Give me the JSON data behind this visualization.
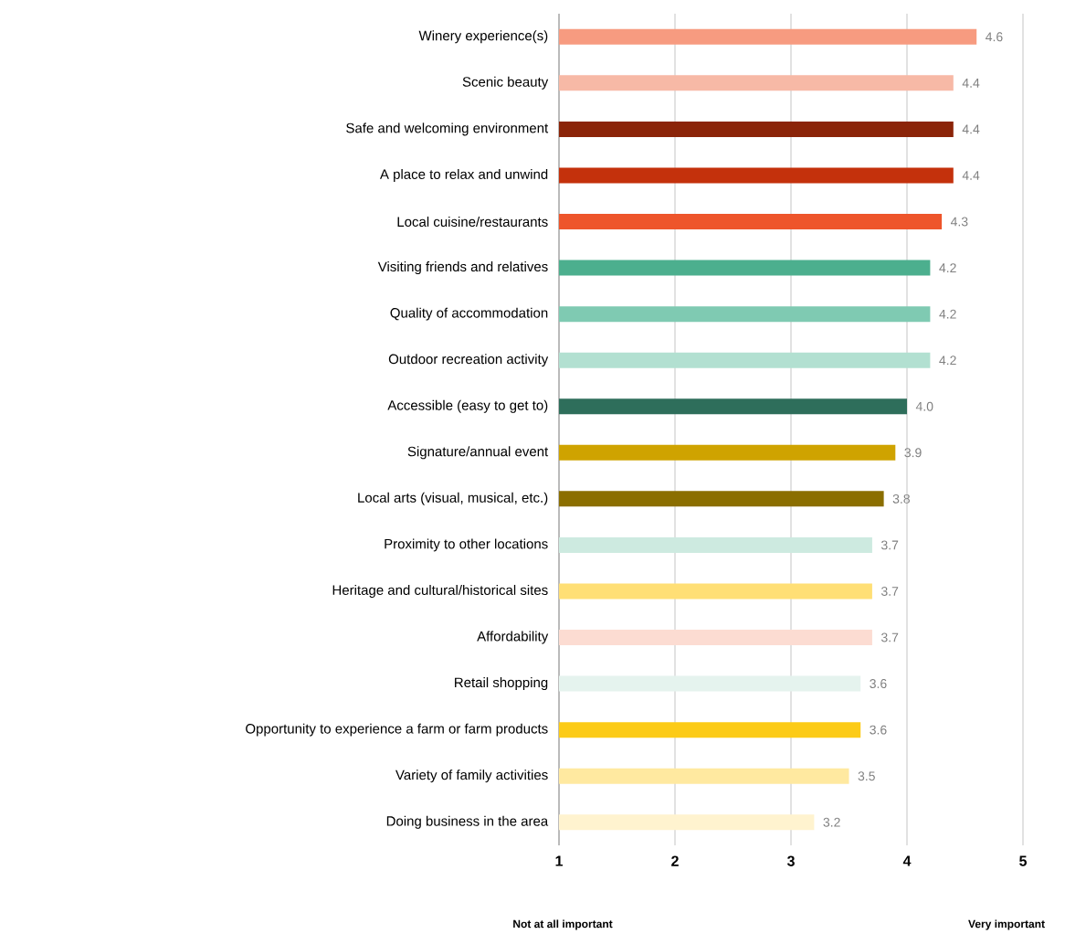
{
  "chart_data": {
    "type": "bar",
    "orientation": "horizontal",
    "categories": [
      "Winery experience(s)",
      "Scenic beauty",
      "Safe and welcoming environment",
      "A place to relax and unwind",
      "Local cuisine/restaurants",
      "Visiting friends and relatives",
      "Quality of accommodation",
      "Outdoor recreation activity",
      "Accessible (easy to get to)",
      "Signature/annual event",
      "Local arts (visual, musical, etc.)",
      "Proximity to other locations",
      "Heritage and cultural/historical sites",
      "Affordability",
      "Retail shopping",
      "Opportunity to experience a farm or farm products",
      "Variety of family activities",
      "Doing business in the area"
    ],
    "values": [
      4.6,
      4.4,
      4.4,
      4.4,
      4.3,
      4.2,
      4.2,
      4.2,
      4.0,
      3.9,
      3.8,
      3.7,
      3.7,
      3.7,
      3.6,
      3.6,
      3.5,
      3.2
    ],
    "colors": [
      "#f79b80",
      "#f7b9a6",
      "#8b2408",
      "#c4310c",
      "#ee552b",
      "#4caf8e",
      "#7fcab2",
      "#b2e0d1",
      "#2e6e5b",
      "#cfa300",
      "#8b6e00",
      "#cdeae0",
      "#ffdf75",
      "#fcdcd2",
      "#e5f3ee",
      "#fccb17",
      "#ffe9a0",
      "#fff3cf"
    ],
    "xlim": [
      1,
      5
    ],
    "xticks": [
      1,
      2,
      3,
      4,
      5
    ],
    "value_labels": [
      "4.6",
      "4.4",
      "4.4",
      "4.4",
      "4.3",
      "4.2",
      "4.2",
      "4.2",
      "4.0",
      "3.9",
      "3.8",
      "3.7",
      "3.7",
      "3.7",
      "3.6",
      "3.6",
      "3.5",
      "3.2"
    ],
    "grid": "x",
    "annotations": [
      "Not at all important",
      "Very important"
    ]
  }
}
